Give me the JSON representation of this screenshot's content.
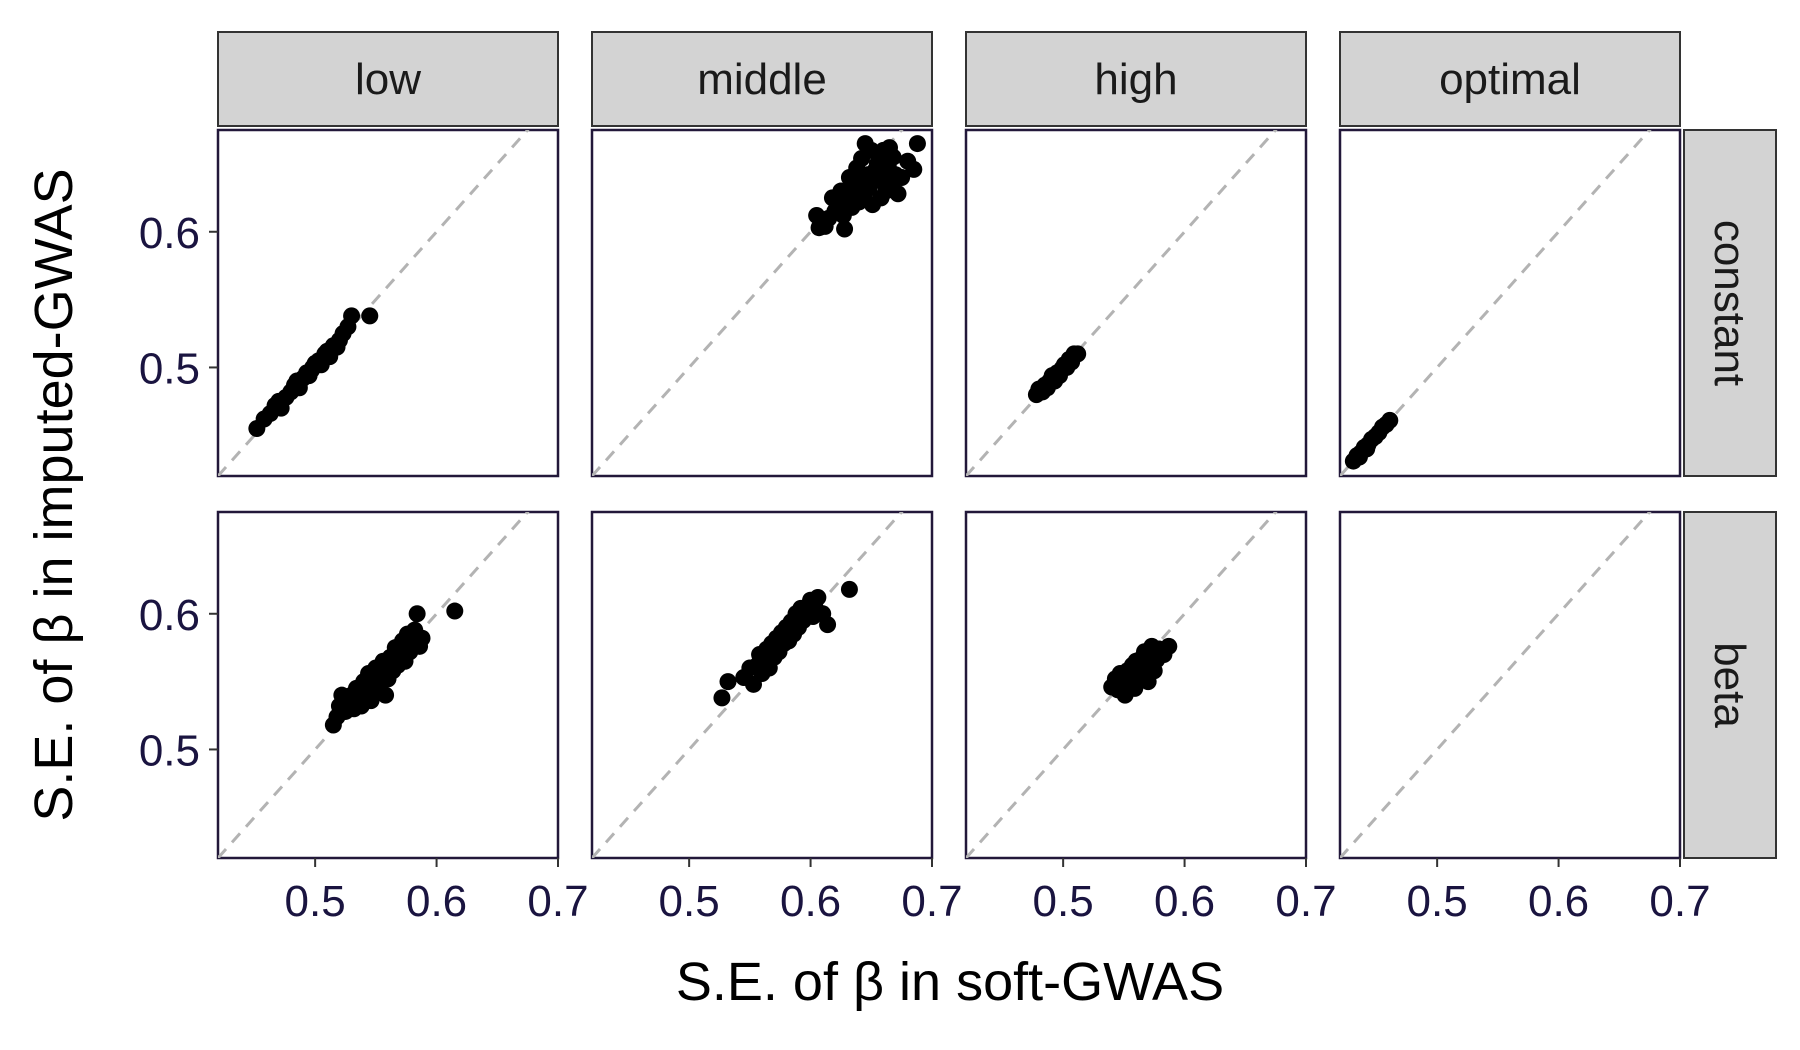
{
  "chart_data": {
    "type": "scatter",
    "xlabel": "S.E. of β in soft-GWAS",
    "ylabel": "S.E. of β in imputed-GWAS",
    "xlim": [
      0.42,
      0.7
    ],
    "ylim": [
      0.42,
      0.675
    ],
    "x_ticks": [
      "0.5",
      "0.6",
      "0.7"
    ],
    "y_ticks": [
      "0.5",
      "0.6"
    ],
    "x_tick_values": [
      0.5,
      0.6,
      0.7
    ],
    "y_tick_values": [
      0.5,
      0.6
    ],
    "reference_line": "y = x (dashed grey)",
    "column_facets": [
      "low",
      "middle",
      "high",
      "optimal"
    ],
    "row_facets": [
      "constant",
      "beta"
    ],
    "panels": [
      {
        "row": "constant",
        "col": "low",
        "points": [
          [
            0.452,
            0.455
          ],
          [
            0.458,
            0.462
          ],
          [
            0.463,
            0.466
          ],
          [
            0.467,
            0.472
          ],
          [
            0.472,
            0.47
          ],
          [
            0.476,
            0.478
          ],
          [
            0.48,
            0.482
          ],
          [
            0.483,
            0.487
          ],
          [
            0.487,
            0.485
          ],
          [
            0.49,
            0.492
          ],
          [
            0.493,
            0.496
          ],
          [
            0.495,
            0.494
          ],
          [
            0.498,
            0.5
          ],
          [
            0.5,
            0.503
          ],
          [
            0.503,
            0.505
          ],
          [
            0.505,
            0.502
          ],
          [
            0.508,
            0.51
          ],
          [
            0.51,
            0.512
          ],
          [
            0.512,
            0.508
          ],
          [
            0.515,
            0.516
          ],
          [
            0.518,
            0.515
          ],
          [
            0.52,
            0.52
          ],
          [
            0.523,
            0.525
          ],
          [
            0.527,
            0.53
          ],
          [
            0.53,
            0.538
          ],
          [
            0.545,
            0.538
          ],
          [
            0.47,
            0.475
          ],
          [
            0.485,
            0.49
          ],
          [
            0.497,
            0.498
          ],
          [
            0.507,
            0.507
          ]
        ]
      },
      {
        "row": "constant",
        "col": "middle",
        "points": [
          [
            0.605,
            0.612
          ],
          [
            0.607,
            0.603
          ],
          [
            0.612,
            0.604
          ],
          [
            0.615,
            0.61
          ],
          [
            0.618,
            0.625
          ],
          [
            0.62,
            0.615
          ],
          [
            0.622,
            0.62
          ],
          [
            0.625,
            0.63
          ],
          [
            0.627,
            0.612
          ],
          [
            0.628,
            0.602
          ],
          [
            0.63,
            0.626
          ],
          [
            0.632,
            0.64
          ],
          [
            0.634,
            0.618
          ],
          [
            0.636,
            0.632
          ],
          [
            0.638,
            0.647
          ],
          [
            0.64,
            0.622
          ],
          [
            0.641,
            0.636
          ],
          [
            0.642,
            0.654
          ],
          [
            0.644,
            0.628
          ],
          [
            0.645,
            0.665
          ],
          [
            0.647,
            0.642
          ],
          [
            0.648,
            0.632
          ],
          [
            0.65,
            0.66
          ],
          [
            0.651,
            0.62
          ],
          [
            0.653,
            0.645
          ],
          [
            0.655,
            0.638
          ],
          [
            0.657,
            0.652
          ],
          [
            0.658,
            0.625
          ],
          [
            0.66,
            0.64
          ],
          [
            0.662,
            0.63
          ],
          [
            0.664,
            0.648
          ],
          [
            0.666,
            0.636
          ],
          [
            0.668,
            0.655
          ],
          [
            0.67,
            0.642
          ],
          [
            0.672,
            0.628
          ],
          [
            0.675,
            0.64
          ],
          [
            0.68,
            0.652
          ],
          [
            0.685,
            0.646
          ],
          [
            0.688,
            0.665
          ],
          [
            0.625,
            0.622
          ],
          [
            0.635,
            0.63
          ],
          [
            0.645,
            0.64
          ],
          [
            0.655,
            0.65
          ],
          [
            0.665,
            0.662
          ],
          [
            0.61,
            0.608
          ],
          [
            0.66,
            0.66
          ]
        ]
      },
      {
        "row": "constant",
        "col": "high",
        "points": [
          [
            0.478,
            0.48
          ],
          [
            0.48,
            0.484
          ],
          [
            0.483,
            0.482
          ],
          [
            0.485,
            0.487
          ],
          [
            0.487,
            0.485
          ],
          [
            0.489,
            0.49
          ],
          [
            0.491,
            0.494
          ],
          [
            0.493,
            0.49
          ],
          [
            0.495,
            0.496
          ],
          [
            0.497,
            0.494
          ],
          [
            0.499,
            0.499
          ],
          [
            0.501,
            0.502
          ],
          [
            0.503,
            0.5
          ],
          [
            0.505,
            0.506
          ],
          [
            0.507,
            0.504
          ],
          [
            0.509,
            0.51
          ],
          [
            0.512,
            0.51
          ]
        ]
      },
      {
        "row": "constant",
        "col": "optimal",
        "points": [
          [
            0.431,
            0.431
          ],
          [
            0.434,
            0.435
          ],
          [
            0.437,
            0.437
          ],
          [
            0.44,
            0.441
          ],
          [
            0.443,
            0.443
          ],
          [
            0.446,
            0.447
          ],
          [
            0.449,
            0.449
          ],
          [
            0.452,
            0.452
          ],
          [
            0.455,
            0.456
          ],
          [
            0.458,
            0.458
          ],
          [
            0.461,
            0.461
          ],
          [
            0.436,
            0.434
          ],
          [
            0.442,
            0.44
          ]
        ]
      },
      {
        "row": "beta",
        "col": "low",
        "points": [
          [
            0.515,
            0.518
          ],
          [
            0.518,
            0.524
          ],
          [
            0.52,
            0.532
          ],
          [
            0.522,
            0.54
          ],
          [
            0.525,
            0.528
          ],
          [
            0.527,
            0.535
          ],
          [
            0.53,
            0.54
          ],
          [
            0.532,
            0.53
          ],
          [
            0.534,
            0.545
          ],
          [
            0.536,
            0.538
          ],
          [
            0.538,
            0.532
          ],
          [
            0.54,
            0.55
          ],
          [
            0.542,
            0.542
          ],
          [
            0.544,
            0.556
          ],
          [
            0.546,
            0.536
          ],
          [
            0.548,
            0.548
          ],
          [
            0.55,
            0.56
          ],
          [
            0.552,
            0.545
          ],
          [
            0.554,
            0.555
          ],
          [
            0.556,
            0.565
          ],
          [
            0.558,
            0.54
          ],
          [
            0.56,
            0.552
          ],
          [
            0.562,
            0.568
          ],
          [
            0.564,
            0.558
          ],
          [
            0.566,
            0.575
          ],
          [
            0.568,
            0.562
          ],
          [
            0.57,
            0.57
          ],
          [
            0.572,
            0.58
          ],
          [
            0.574,
            0.565
          ],
          [
            0.576,
            0.585
          ],
          [
            0.578,
            0.572
          ],
          [
            0.58,
            0.578
          ],
          [
            0.582,
            0.588
          ],
          [
            0.584,
            0.6
          ],
          [
            0.586,
            0.576
          ],
          [
            0.588,
            0.582
          ],
          [
            0.615,
            0.602
          ]
        ]
      },
      {
        "row": "beta",
        "col": "middle",
        "points": [
          [
            0.527,
            0.538
          ],
          [
            0.532,
            0.55
          ],
          [
            0.545,
            0.553
          ],
          [
            0.55,
            0.56
          ],
          [
            0.553,
            0.548
          ],
          [
            0.556,
            0.562
          ],
          [
            0.558,
            0.57
          ],
          [
            0.56,
            0.556
          ],
          [
            0.562,
            0.565
          ],
          [
            0.564,
            0.574
          ],
          [
            0.566,
            0.56
          ],
          [
            0.568,
            0.578
          ],
          [
            0.57,
            0.568
          ],
          [
            0.572,
            0.582
          ],
          [
            0.574,
            0.572
          ],
          [
            0.576,
            0.586
          ],
          [
            0.578,
            0.578
          ],
          [
            0.58,
            0.59
          ],
          [
            0.582,
            0.58
          ],
          [
            0.584,
            0.594
          ],
          [
            0.586,
            0.585
          ],
          [
            0.588,
            0.6
          ],
          [
            0.59,
            0.59
          ],
          [
            0.592,
            0.604
          ],
          [
            0.594,
            0.595
          ],
          [
            0.596,
            0.6
          ],
          [
            0.598,
            0.606
          ],
          [
            0.6,
            0.61
          ],
          [
            0.602,
            0.598
          ],
          [
            0.604,
            0.604
          ],
          [
            0.606,
            0.612
          ],
          [
            0.61,
            0.6
          ],
          [
            0.614,
            0.592
          ],
          [
            0.632,
            0.618
          ]
        ]
      },
      {
        "row": "beta",
        "col": "high",
        "points": [
          [
            0.54,
            0.546
          ],
          [
            0.543,
            0.552
          ],
          [
            0.545,
            0.544
          ],
          [
            0.547,
            0.556
          ],
          [
            0.549,
            0.548
          ],
          [
            0.551,
            0.54
          ],
          [
            0.553,
            0.558
          ],
          [
            0.555,
            0.55
          ],
          [
            0.557,
            0.562
          ],
          [
            0.559,
            0.545
          ],
          [
            0.561,
            0.555
          ],
          [
            0.563,
            0.566
          ],
          [
            0.565,
            0.552
          ],
          [
            0.567,
            0.572
          ],
          [
            0.569,
            0.56
          ],
          [
            0.571,
            0.568
          ],
          [
            0.573,
            0.576
          ],
          [
            0.575,
            0.558
          ],
          [
            0.577,
            0.566
          ],
          [
            0.579,
            0.574
          ],
          [
            0.583,
            0.57
          ],
          [
            0.587,
            0.576
          ],
          [
            0.56,
            0.565
          ],
          [
            0.57,
            0.55
          ]
        ]
      },
      {
        "row": "beta",
        "col": "optimal",
        "points": []
      }
    ]
  }
}
